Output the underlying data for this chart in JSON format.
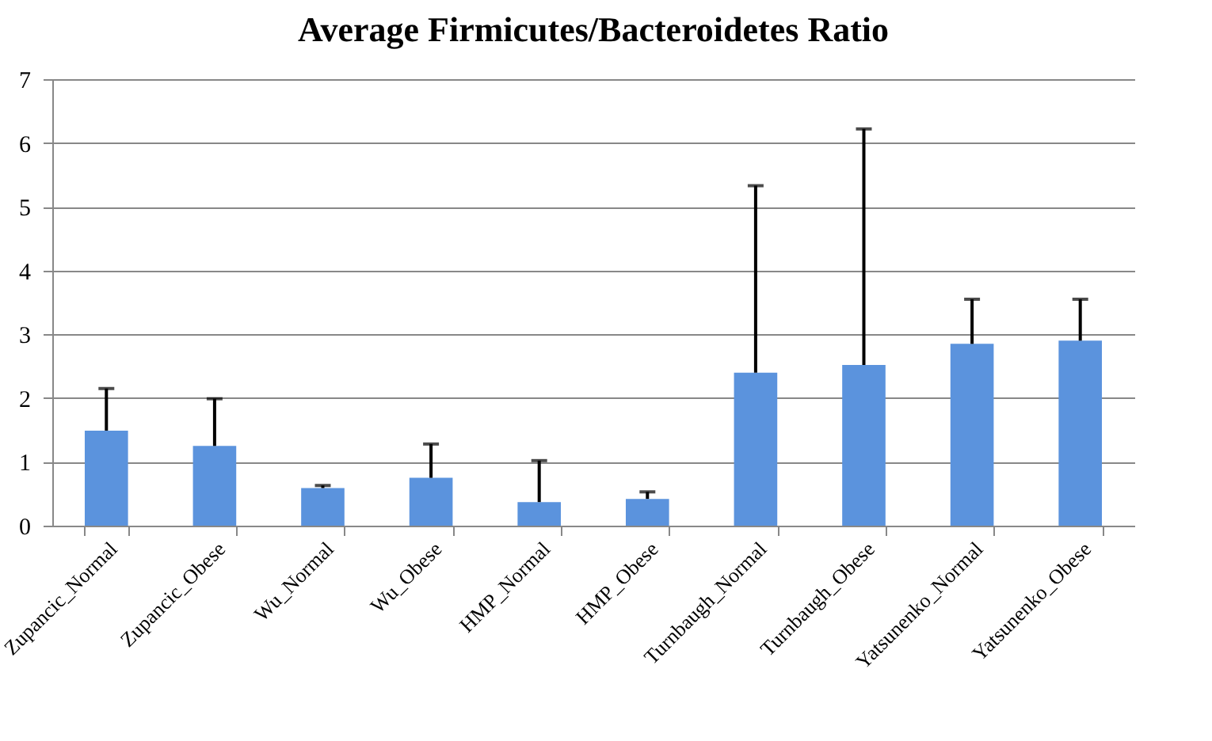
{
  "chart_data": {
    "type": "bar",
    "title": "Average Firmicutes/Bacteroidetes Ratio",
    "categories": [
      "Zupancic_Normal",
      "Zupancic_Obese",
      "Wu_Normal",
      "Wu_Obese",
      "HMP_Normal",
      "HMP_Obese",
      "Turnbaugh_Normal",
      "Turnbaugh_Obese",
      "Yatsunenko_Normal",
      "Yatsunenko_Obese"
    ],
    "values": [
      1.49,
      1.25,
      0.59,
      0.75,
      0.37,
      0.42,
      2.4,
      2.52,
      2.85,
      2.9
    ],
    "errors": [
      [
        1.49,
        2.15
      ],
      [
        1.25,
        1.99
      ],
      [
        0.59,
        0.63
      ],
      [
        0.75,
        1.28
      ],
      [
        0.37,
        1.02
      ],
      [
        0.42,
        0.53
      ],
      [
        2.4,
        5.33
      ],
      [
        2.52,
        6.22
      ],
      [
        2.85,
        3.55
      ],
      [
        2.9,
        3.55
      ]
    ],
    "color": "#5b93dd",
    "ylim": [
      0,
      7
    ],
    "yticks": [
      0,
      1,
      2,
      3,
      4,
      5,
      6,
      7
    ],
    "grid": "y"
  }
}
